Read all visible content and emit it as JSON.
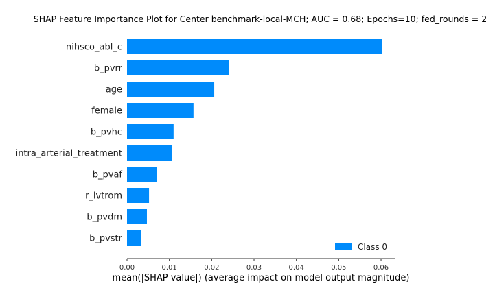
{
  "chart_data": {
    "type": "bar",
    "orientation": "horizontal",
    "title": "SHAP Feature Importance Plot for Center benchmark-local-MCH; AUC = 0.68; Epochs=10; fed_rounds = 2",
    "xlabel": "mean(|SHAP value|) (average impact on model output magnitude)",
    "ylabel": "",
    "categories": [
      "nihsco_abl_c",
      "b_pvrr",
      "age",
      "female",
      "b_pvhc",
      "intra_arterial_treatment",
      "b_pvaf",
      "r_ivtrom",
      "b_pvdm",
      "b_pvstr"
    ],
    "series": [
      {
        "name": "Class 0",
        "color": "#008bfb",
        "values": [
          0.0602,
          0.0241,
          0.0206,
          0.0157,
          0.011,
          0.0106,
          0.007,
          0.0052,
          0.0047,
          0.0034
        ]
      }
    ],
    "xticks": [
      0.0,
      0.01,
      0.02,
      0.03,
      0.04,
      0.05,
      0.06
    ],
    "xtick_labels": [
      "0.00",
      "0.01",
      "0.02",
      "0.03",
      "0.04",
      "0.05",
      "0.06"
    ],
    "xlim": [
      0,
      0.0634
    ],
    "grid": false,
    "legend": {
      "position": "bottom-right",
      "label": "Class 0"
    }
  }
}
